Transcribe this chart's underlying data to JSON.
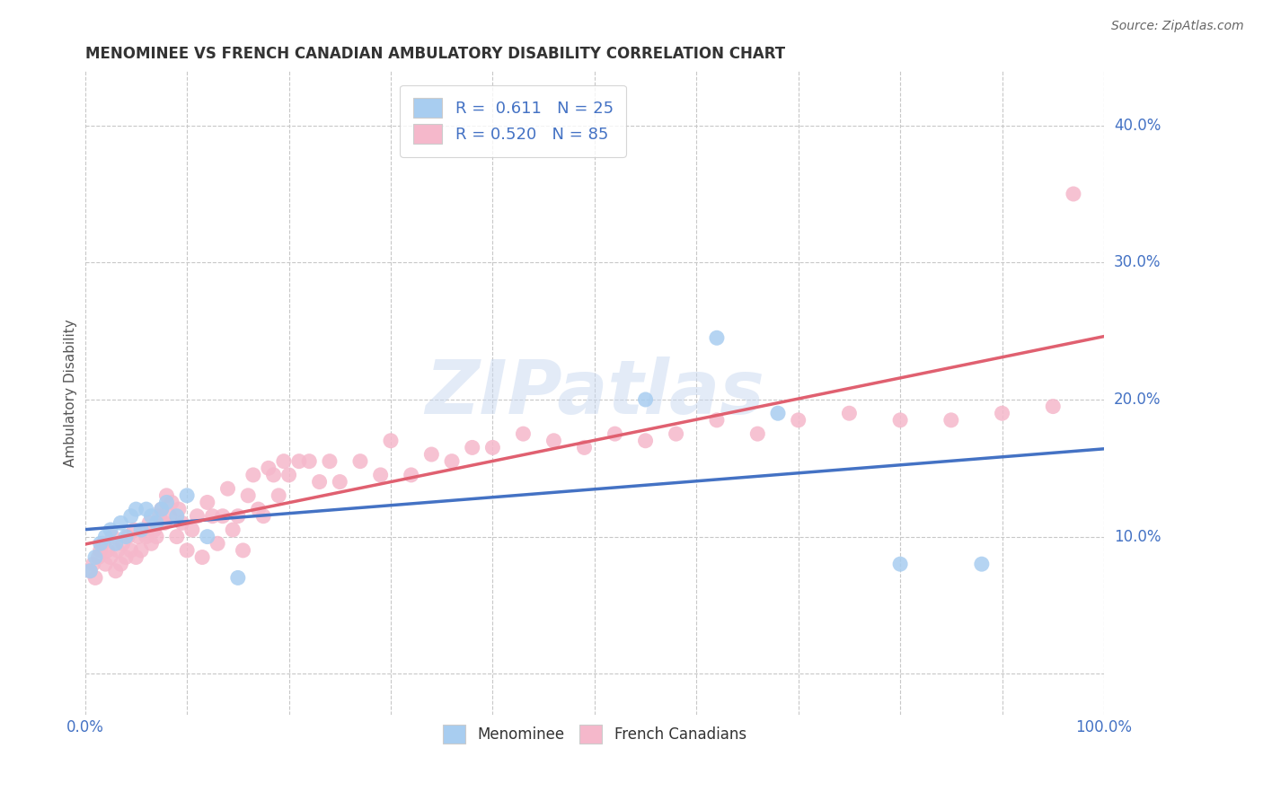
{
  "title": "MENOMINEE VS FRENCH CANADIAN AMBULATORY DISABILITY CORRELATION CHART",
  "source": "Source: ZipAtlas.com",
  "ylabel": "Ambulatory Disability",
  "xlim": [
    0,
    1.0
  ],
  "ylim": [
    -0.03,
    0.44
  ],
  "xticks": [
    0.0,
    0.1,
    0.2,
    0.3,
    0.4,
    0.5,
    0.6,
    0.7,
    0.8,
    0.9,
    1.0
  ],
  "ytick_positions": [
    0.0,
    0.1,
    0.2,
    0.3,
    0.4
  ],
  "ytick_labels": [
    "",
    "10.0%",
    "20.0%",
    "30.0%",
    "40.0%"
  ],
  "menominee_color": "#a8cdf0",
  "french_color": "#f5b8cb",
  "trend_blue": "#4472c4",
  "trend_pink": "#e06070",
  "background": "#ffffff",
  "grid_color": "#c8c8c8",
  "menominee_x": [
    0.005,
    0.01,
    0.015,
    0.02,
    0.025,
    0.03,
    0.035,
    0.04,
    0.045,
    0.05,
    0.055,
    0.06,
    0.065,
    0.07,
    0.075,
    0.08,
    0.09,
    0.1,
    0.12,
    0.15,
    0.55,
    0.62,
    0.68,
    0.8,
    0.88
  ],
  "menominee_y": [
    0.075,
    0.085,
    0.095,
    0.1,
    0.105,
    0.095,
    0.11,
    0.1,
    0.115,
    0.12,
    0.105,
    0.12,
    0.115,
    0.11,
    0.12,
    0.125,
    0.115,
    0.13,
    0.1,
    0.07,
    0.2,
    0.245,
    0.19,
    0.08,
    0.08
  ],
  "french_x": [
    0.005,
    0.008,
    0.01,
    0.013,
    0.015,
    0.018,
    0.02,
    0.022,
    0.025,
    0.027,
    0.03,
    0.032,
    0.035,
    0.037,
    0.04,
    0.042,
    0.045,
    0.048,
    0.05,
    0.052,
    0.055,
    0.058,
    0.06,
    0.063,
    0.065,
    0.068,
    0.07,
    0.073,
    0.075,
    0.078,
    0.08,
    0.083,
    0.085,
    0.09,
    0.092,
    0.095,
    0.1,
    0.105,
    0.11,
    0.115,
    0.12,
    0.125,
    0.13,
    0.135,
    0.14,
    0.145,
    0.15,
    0.155,
    0.16,
    0.165,
    0.17,
    0.175,
    0.18,
    0.185,
    0.19,
    0.195,
    0.2,
    0.21,
    0.22,
    0.23,
    0.24,
    0.25,
    0.27,
    0.29,
    0.3,
    0.32,
    0.34,
    0.36,
    0.38,
    0.4,
    0.43,
    0.46,
    0.49,
    0.52,
    0.55,
    0.58,
    0.62,
    0.66,
    0.7,
    0.75,
    0.8,
    0.85,
    0.9,
    0.95,
    0.97
  ],
  "french_y": [
    0.075,
    0.08,
    0.07,
    0.085,
    0.09,
    0.095,
    0.08,
    0.09,
    0.085,
    0.1,
    0.075,
    0.09,
    0.08,
    0.095,
    0.085,
    0.1,
    0.09,
    0.105,
    0.085,
    0.1,
    0.09,
    0.105,
    0.1,
    0.11,
    0.095,
    0.105,
    0.1,
    0.115,
    0.12,
    0.11,
    0.13,
    0.115,
    0.125,
    0.1,
    0.12,
    0.11,
    0.09,
    0.105,
    0.115,
    0.085,
    0.125,
    0.115,
    0.095,
    0.115,
    0.135,
    0.105,
    0.115,
    0.09,
    0.13,
    0.145,
    0.12,
    0.115,
    0.15,
    0.145,
    0.13,
    0.155,
    0.145,
    0.155,
    0.155,
    0.14,
    0.155,
    0.14,
    0.155,
    0.145,
    0.17,
    0.145,
    0.16,
    0.155,
    0.165,
    0.165,
    0.175,
    0.17,
    0.165,
    0.175,
    0.17,
    0.175,
    0.185,
    0.175,
    0.185,
    0.19,
    0.185,
    0.185,
    0.19,
    0.195,
    0.35
  ],
  "watermark_text": "ZIPatlas",
  "legend_label1": "R =  0.611   N = 25",
  "legend_label2": "R = 0.520   N = 85"
}
